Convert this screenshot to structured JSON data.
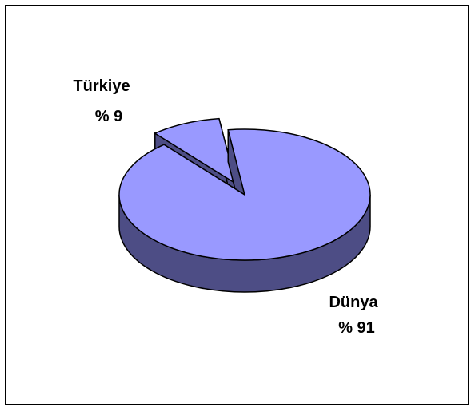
{
  "chart_data": {
    "type": "pie",
    "style": "3d-exploded",
    "title": "",
    "categories": [
      "Türkiye",
      "Dünya"
    ],
    "values": [
      9,
      91
    ],
    "labels": [
      {
        "name": "Türkiye",
        "value": "% 9"
      },
      {
        "name": "Dünya",
        "value": "% 91"
      }
    ],
    "colors": {
      "top": "#9999ff",
      "side": "#4d4d85",
      "outline": "#000000"
    },
    "legend": "none"
  }
}
